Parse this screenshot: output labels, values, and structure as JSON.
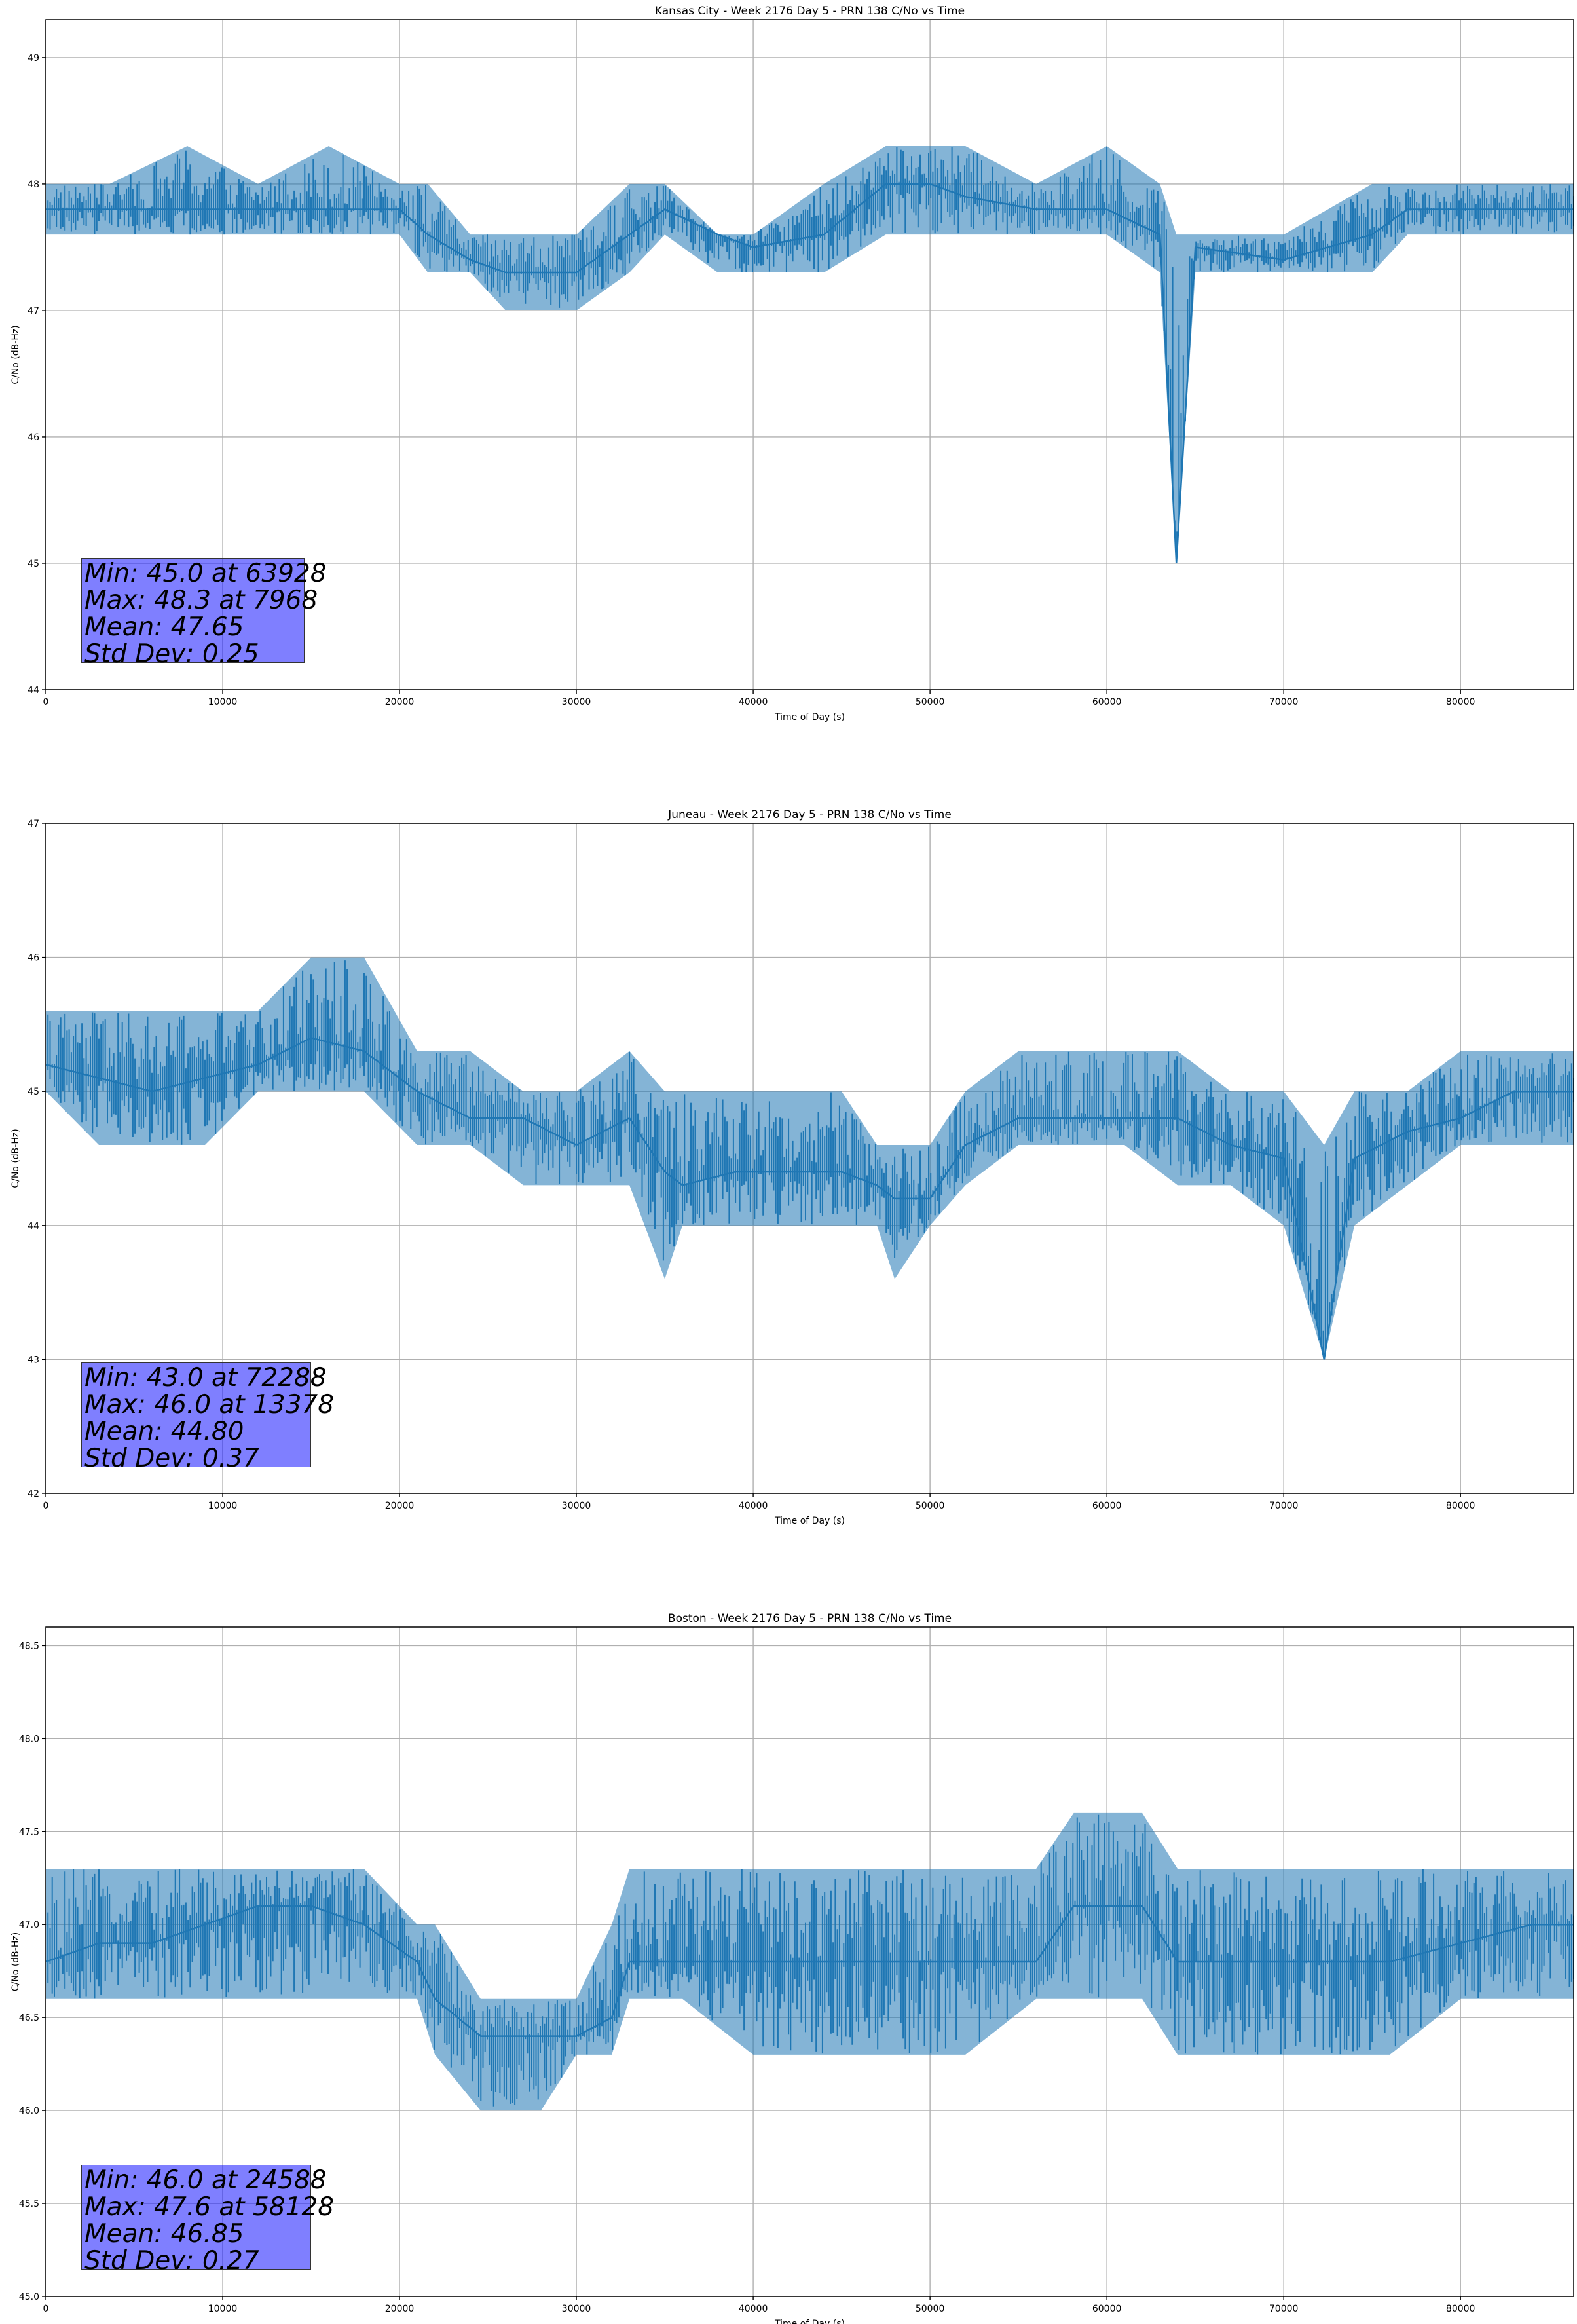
{
  "chart_data": [
    {
      "type": "line",
      "title": "Kansas City - Week 2176 Day 5 - PRN 138 C/No vs Time",
      "xlabel": "Time of Day (s)",
      "ylabel": "C/No (dB-Hz)",
      "xlim": [
        0,
        86400
      ],
      "ylim": [
        44,
        49.3
      ],
      "xticks": [
        0,
        10000,
        20000,
        30000,
        40000,
        50000,
        60000,
        70000,
        80000
      ],
      "yticks": [
        44,
        45,
        46,
        47,
        48,
        49
      ],
      "grid": true,
      "color": "#1f77b4",
      "series": [
        {
          "x": [
            0,
            3600,
            8000,
            12000,
            16000,
            20000,
            21600,
            24000,
            26000,
            28000,
            30000,
            33000,
            35000,
            38000,
            40000,
            44000,
            47500,
            50000,
            52000,
            56000,
            60000,
            63000,
            63928,
            65000,
            70000,
            75000,
            77000,
            80000,
            84000,
            86400
          ],
          "y": [
            47.8,
            47.8,
            47.8,
            47.8,
            47.8,
            47.8,
            47.6,
            47.4,
            47.3,
            47.3,
            47.3,
            47.6,
            47.8,
            47.6,
            47.5,
            47.6,
            48.0,
            48.0,
            47.9,
            47.8,
            47.8,
            47.6,
            45.0,
            47.5,
            47.4,
            47.6,
            47.8,
            47.8,
            47.8,
            47.8
          ],
          "band_low": [
            47.6,
            47.6,
            47.6,
            47.6,
            47.6,
            47.6,
            47.3,
            47.3,
            47.0,
            47.0,
            47.0,
            47.3,
            47.6,
            47.3,
            47.3,
            47.3,
            47.6,
            47.6,
            47.6,
            47.6,
            47.6,
            47.3,
            45.0,
            47.3,
            47.3,
            47.3,
            47.6,
            47.6,
            47.6,
            47.6
          ],
          "band_high": [
            48.0,
            48.0,
            48.3,
            48.0,
            48.3,
            48.0,
            48.0,
            47.6,
            47.6,
            47.6,
            47.6,
            48.0,
            48.0,
            47.6,
            47.6,
            48.0,
            48.3,
            48.3,
            48.3,
            48.0,
            48.3,
            48.0,
            47.6,
            47.6,
            47.6,
            48.0,
            48.0,
            48.0,
            48.0,
            48.0
          ]
        }
      ],
      "stats": {
        "min": "Min: 45.0 at 63928",
        "max": "Max: 48.3 at 7968",
        "mean": "Mean: 47.65",
        "std": "Std Dev: 0.25"
      }
    },
    {
      "type": "line",
      "title": "Juneau - Week 2176 Day 5 - PRN 138 C/No vs Time",
      "xlabel": "Time of Day (s)",
      "ylabel": "C/No (dB-Hz)",
      "xlim": [
        0,
        86400
      ],
      "ylim": [
        42,
        47
      ],
      "xticks": [
        0,
        10000,
        20000,
        30000,
        40000,
        50000,
        60000,
        70000,
        80000
      ],
      "yticks": [
        42,
        43,
        44,
        45,
        46,
        47
      ],
      "grid": true,
      "color": "#1f77b4",
      "series": [
        {
          "x": [
            0,
            3000,
            6000,
            9000,
            12000,
            15000,
            18000,
            21000,
            24000,
            27000,
            30000,
            33000,
            35000,
            36000,
            39000,
            42000,
            45000,
            47000,
            48000,
            50000,
            52000,
            55000,
            58000,
            61000,
            64000,
            67000,
            70000,
            72288,
            74000,
            77000,
            80000,
            83000,
            86400
          ],
          "y": [
            45.2,
            45.1,
            45.0,
            45.1,
            45.2,
            45.4,
            45.3,
            45.0,
            44.8,
            44.8,
            44.6,
            44.8,
            44.4,
            44.3,
            44.4,
            44.4,
            44.4,
            44.3,
            44.2,
            44.2,
            44.6,
            44.8,
            44.8,
            44.8,
            44.8,
            44.6,
            44.5,
            43.0,
            44.5,
            44.7,
            44.8,
            45.0,
            45.0
          ],
          "band_low": [
            45.0,
            44.6,
            44.6,
            44.6,
            45.0,
            45.0,
            45.0,
            44.6,
            44.6,
            44.3,
            44.3,
            44.3,
            43.6,
            44.0,
            44.0,
            44.0,
            44.0,
            44.0,
            43.6,
            44.0,
            44.3,
            44.6,
            44.6,
            44.6,
            44.3,
            44.3,
            44.0,
            43.0,
            44.0,
            44.3,
            44.6,
            44.6,
            44.6
          ],
          "band_high": [
            45.6,
            45.6,
            45.6,
            45.6,
            45.6,
            46.0,
            46.0,
            45.3,
            45.3,
            45.0,
            45.0,
            45.3,
            45.0,
            45.0,
            45.0,
            45.0,
            45.0,
            44.6,
            44.6,
            44.6,
            45.0,
            45.3,
            45.3,
            45.3,
            45.3,
            45.0,
            45.0,
            44.6,
            45.0,
            45.0,
            45.3,
            45.3,
            45.3
          ]
        }
      ],
      "stats": {
        "min": "Min: 43.0 at 72288",
        "max": "Max: 46.0 at 13378",
        "mean": "Mean: 44.80",
        "std": "Std Dev: 0.37"
      }
    },
    {
      "type": "line",
      "title": "Boston - Week 2176 Day 5 - PRN 138 C/No vs Time",
      "xlabel": "Time of Day (s)",
      "ylabel": "C/No (dB-Hz)",
      "xlim": [
        0,
        86400
      ],
      "ylim": [
        45.0,
        48.6
      ],
      "xticks": [
        0,
        10000,
        20000,
        30000,
        40000,
        50000,
        60000,
        70000,
        80000
      ],
      "yticks": [
        45.0,
        45.5,
        46.0,
        46.5,
        47.0,
        47.5,
        48.0,
        48.5
      ],
      "grid": true,
      "color": "#1f77b4",
      "series": [
        {
          "x": [
            0,
            3000,
            6000,
            9000,
            12000,
            15000,
            18000,
            21000,
            22000,
            24588,
            26000,
            28000,
            30000,
            32000,
            33000,
            36000,
            40000,
            44000,
            48000,
            52000,
            56000,
            58128,
            60000,
            62000,
            64000,
            68000,
            72000,
            76000,
            80000,
            84000,
            86400
          ],
          "y": [
            46.8,
            46.9,
            46.9,
            47.0,
            47.1,
            47.1,
            47.0,
            46.8,
            46.6,
            46.4,
            46.4,
            46.4,
            46.4,
            46.5,
            46.8,
            46.8,
            46.8,
            46.8,
            46.8,
            46.8,
            46.8,
            47.1,
            47.1,
            47.1,
            46.8,
            46.8,
            46.8,
            46.8,
            46.9,
            47.0,
            47.0
          ],
          "band_low": [
            46.6,
            46.6,
            46.6,
            46.6,
            46.6,
            46.6,
            46.6,
            46.6,
            46.3,
            46.0,
            46.0,
            46.0,
            46.3,
            46.3,
            46.6,
            46.6,
            46.3,
            46.3,
            46.3,
            46.3,
            46.6,
            46.6,
            46.6,
            46.6,
            46.3,
            46.3,
            46.3,
            46.3,
            46.6,
            46.6,
            46.6
          ],
          "band_high": [
            47.3,
            47.3,
            47.3,
            47.3,
            47.3,
            47.3,
            47.3,
            47.0,
            47.0,
            46.6,
            46.6,
            46.6,
            46.6,
            47.0,
            47.3,
            47.3,
            47.3,
            47.3,
            47.3,
            47.3,
            47.3,
            47.6,
            47.6,
            47.6,
            47.3,
            47.3,
            47.3,
            47.3,
            47.3,
            47.3,
            47.3
          ]
        }
      ],
      "stats": {
        "min": "Min: 46.0 at 24588",
        "max": "Max: 47.6 at 58128",
        "mean": "Mean: 46.85",
        "std": "Std Dev: 0.27"
      }
    }
  ]
}
